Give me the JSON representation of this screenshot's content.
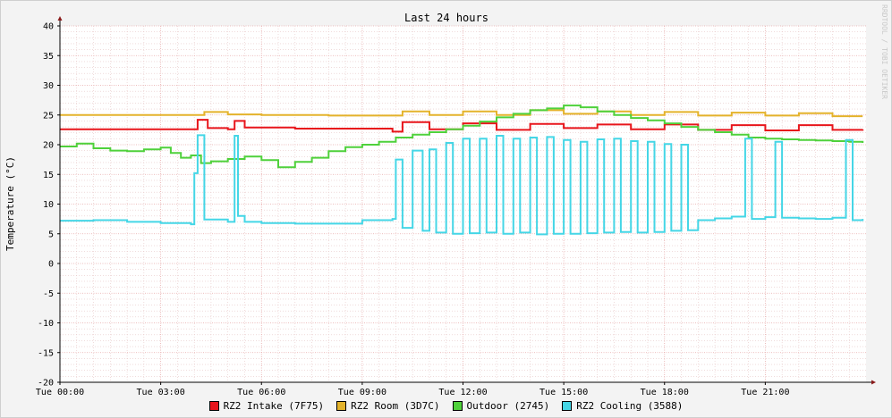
{
  "chart_data": {
    "type": "line",
    "title": "Last 24 hours",
    "ylabel": "Temperature (°C)",
    "watermark": "RRDTOOL / TOBI OETIKER",
    "ylim": [
      -20,
      40
    ],
    "xlim": [
      0,
      24
    ],
    "y_ticks": [
      40,
      35,
      30,
      25,
      20,
      15,
      10,
      5,
      0,
      -5,
      -10,
      -15,
      -20
    ],
    "x_ticks": [
      {
        "x": 0,
        "label": "Tue 00:00"
      },
      {
        "x": 3,
        "label": "Tue 03:00"
      },
      {
        "x": 6,
        "label": "Tue 06:00"
      },
      {
        "x": 9,
        "label": "Tue 09:00"
      },
      {
        "x": 12,
        "label": "Tue 12:00"
      },
      {
        "x": 15,
        "label": "Tue 15:00"
      },
      {
        "x": 18,
        "label": "Tue 18:00"
      },
      {
        "x": 21,
        "label": "Tue 21:00"
      }
    ],
    "grid": true,
    "series": [
      {
        "name": "RZ2 Intake (7F75)",
        "color": "#e8151b",
        "x": [
          0,
          2,
          4,
          4.1,
          4.4,
          5,
          5.2,
          5.5,
          7,
          9,
          9.9,
          10.2,
          11,
          12,
          13,
          14,
          15,
          16,
          17,
          18,
          19,
          20,
          21,
          22,
          23,
          23.9
        ],
        "values": [
          22.6,
          22.6,
          22.6,
          24.2,
          22.8,
          22.6,
          24.0,
          22.9,
          22.7,
          22.7,
          22.2,
          23.8,
          22.6,
          23.6,
          22.5,
          23.5,
          22.8,
          23.4,
          22.6,
          23.4,
          22.5,
          23.3,
          22.4,
          23.3,
          22.5,
          22.6
        ]
      },
      {
        "name": "RZ2 Room (3D7C)",
        "color": "#e4b32b",
        "x": [
          0,
          2,
          4,
          4.3,
          5,
          6,
          8,
          9.9,
          10.2,
          11,
          12,
          13,
          14,
          15,
          16,
          17,
          18,
          19,
          20,
          21,
          22,
          23,
          23.9
        ],
        "values": [
          25.0,
          25.0,
          25.0,
          25.5,
          25.1,
          25.0,
          24.9,
          24.9,
          25.6,
          25.0,
          25.6,
          25.0,
          25.8,
          25.2,
          25.6,
          25.0,
          25.5,
          24.9,
          25.4,
          24.9,
          25.3,
          24.8,
          24.8
        ]
      },
      {
        "name": "Outdoor (2745)",
        "color": "#4fd13b",
        "x": [
          0,
          0.5,
          1,
          1.5,
          2,
          2.5,
          3,
          3.3,
          3.6,
          3.9,
          4.2,
          4.5,
          5,
          5.5,
          6,
          6.5,
          7,
          7.5,
          8,
          8.5,
          9,
          9.5,
          10,
          10.5,
          11,
          11.5,
          12,
          12.5,
          13,
          13.5,
          14,
          14.5,
          15,
          15.5,
          16,
          16.5,
          17,
          17.5,
          18,
          18.5,
          19,
          19.5,
          20,
          20.5,
          21,
          21.5,
          22,
          22.5,
          23,
          23.5,
          23.9
        ],
        "values": [
          19.7,
          20.2,
          19.4,
          19.0,
          18.9,
          19.2,
          19.5,
          18.6,
          17.8,
          18.2,
          16.9,
          17.2,
          17.6,
          18.0,
          17.4,
          16.2,
          17.1,
          17.8,
          18.9,
          19.6,
          20.0,
          20.5,
          21.2,
          21.7,
          22.1,
          22.6,
          23.2,
          23.9,
          24.6,
          25.2,
          25.8,
          26.1,
          26.6,
          26.3,
          25.6,
          25.0,
          24.5,
          24.1,
          23.6,
          23.0,
          22.5,
          22.1,
          21.7,
          21.2,
          21.0,
          20.9,
          20.8,
          20.7,
          20.6,
          20.5,
          20.3
        ]
      },
      {
        "name": "RZ2 Cooling (3588)",
        "color": "#45d6e6",
        "x": [
          0,
          1,
          2,
          3,
          3.9,
          4.0,
          4.1,
          4.3,
          5,
          5.2,
          5.3,
          5.5,
          6,
          7,
          8,
          9,
          9.9,
          10.0,
          10.2,
          10.5,
          10.8,
          11,
          11.2,
          11.5,
          11.7,
          12,
          12.2,
          12.5,
          12.7,
          13,
          13.2,
          13.5,
          13.7,
          14,
          14.2,
          14.5,
          14.7,
          15,
          15.2,
          15.5,
          15.7,
          16,
          16.2,
          16.5,
          16.7,
          17,
          17.2,
          17.5,
          17.7,
          18,
          18.2,
          18.5,
          18.7,
          19,
          19.5,
          20,
          20.4,
          20.6,
          21,
          21.3,
          21.5,
          22,
          22.5,
          23,
          23.4,
          23.6,
          23.9
        ],
        "values": [
          7.2,
          7.3,
          7.0,
          6.8,
          6.6,
          15.2,
          21.6,
          7.4,
          7.0,
          21.5,
          8.0,
          7.0,
          6.8,
          6.7,
          6.7,
          7.3,
          7.5,
          17.5,
          6.0,
          19.0,
          5.5,
          19.2,
          5.2,
          20.3,
          5.0,
          21.0,
          5.1,
          21.0,
          5.2,
          21.5,
          5.0,
          21.0,
          5.2,
          21.2,
          4.9,
          21.3,
          5.0,
          20.8,
          5.0,
          20.5,
          5.1,
          20.9,
          5.2,
          21.0,
          5.3,
          20.6,
          5.2,
          20.5,
          5.3,
          20.1,
          5.5,
          20.0,
          5.6,
          7.3,
          7.6,
          7.9,
          21.0,
          7.5,
          7.8,
          20.5,
          7.7,
          7.6,
          7.5,
          7.7,
          20.8,
          7.3,
          7.5
        ]
      }
    ]
  }
}
